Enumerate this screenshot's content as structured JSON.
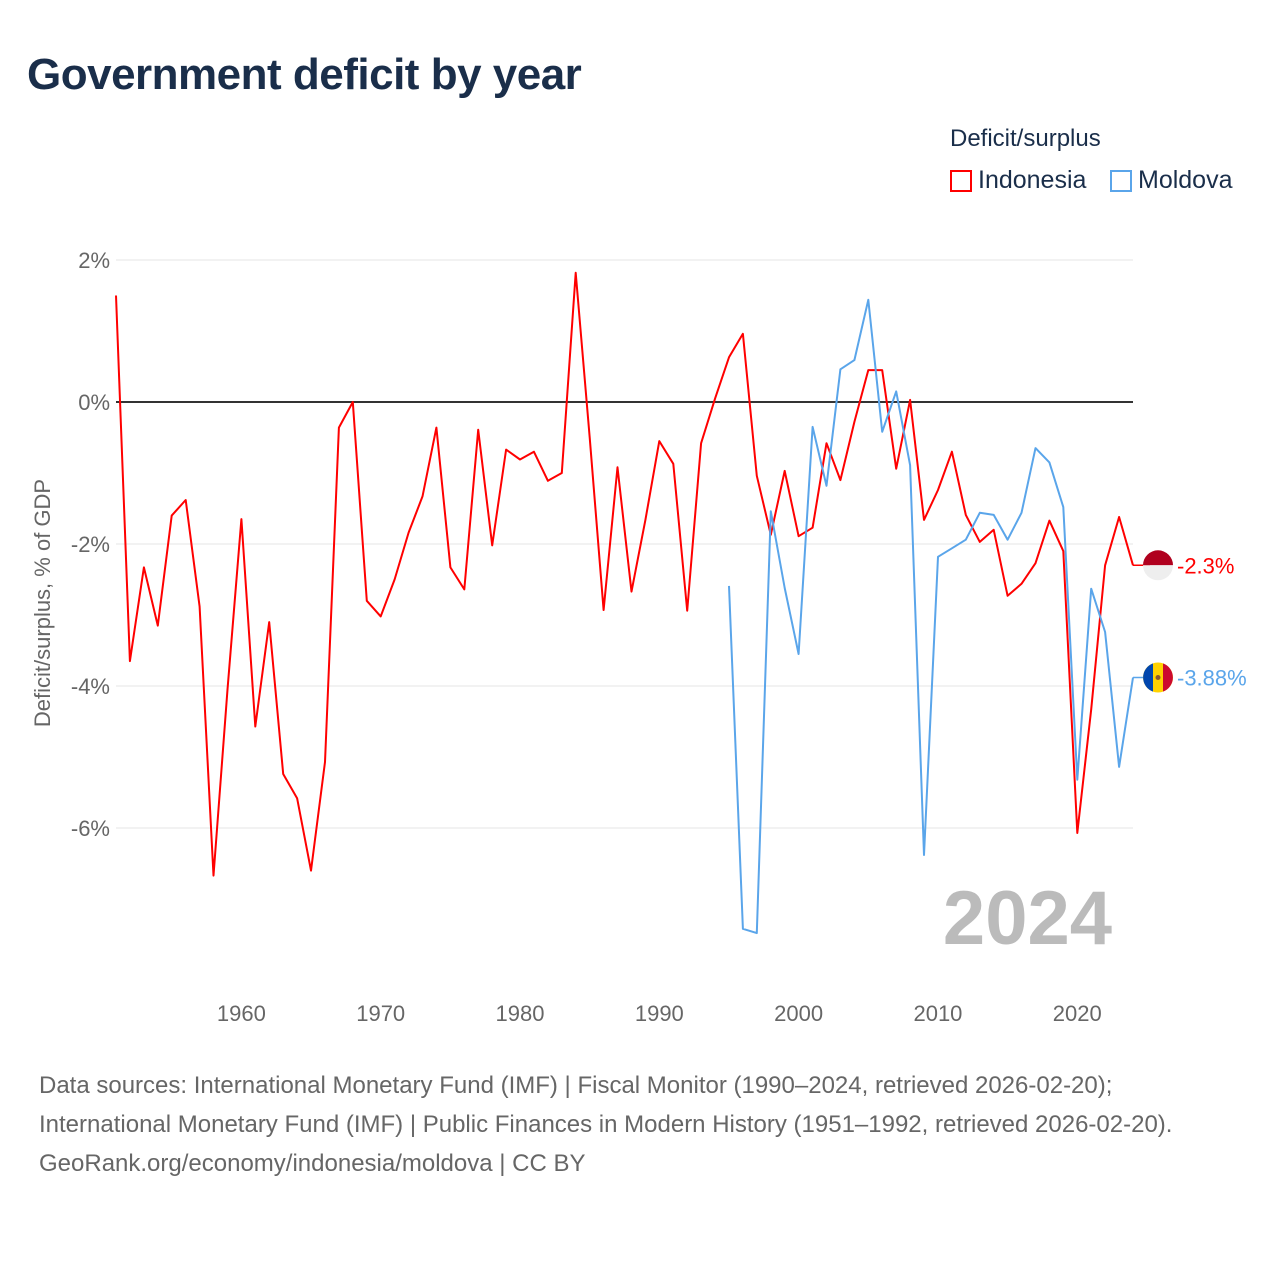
{
  "title": "Government deficit by year",
  "legend": {
    "title": "Deficit/surplus",
    "items": [
      {
        "label": "Indonesia",
        "color": "#ff0000"
      },
      {
        "label": "Moldova",
        "color": "#5aa5ea"
      }
    ]
  },
  "chart_data": {
    "type": "line",
    "title": "Government deficit by year",
    "xlabel": "",
    "ylabel": "Deficit/surplus, % of GDP",
    "xlim": [
      1951,
      2024
    ],
    "ylim": [
      -8,
      2.2
    ],
    "x_ticks": [
      "1960",
      "1970",
      "1980",
      "1990",
      "2000",
      "2010",
      "2020"
    ],
    "y_ticks": [
      {
        "v": 2,
        "label": "2%"
      },
      {
        "v": 0,
        "label": "0%"
      },
      {
        "v": -2,
        "label": "-2%"
      },
      {
        "v": -4,
        "label": "-4%"
      },
      {
        "v": -6,
        "label": "-6%"
      }
    ],
    "year_label": "2024",
    "series": [
      {
        "name": "Indonesia",
        "color": "#ff0000",
        "start_year": 1951,
        "end_label": "-2.3%",
        "values": [
          1.5,
          -3.65,
          -2.33,
          -3.15,
          -1.6,
          -1.38,
          -2.88,
          -6.67,
          -4.05,
          -1.65,
          -4.57,
          -3.1,
          -5.24,
          -5.58,
          -6.6,
          -5.07,
          -0.36,
          0,
          -2.8,
          -3.02,
          -2.5,
          -1.84,
          -1.33,
          -0.36,
          -2.33,
          -2.64,
          -0.39,
          -2.02,
          -0.67,
          -0.81,
          -0.7,
          -1.11,
          -1.0,
          1.82,
          -0.5,
          -2.93,
          -0.92,
          -2.67,
          -1.66,
          -0.55,
          -0.87,
          -2.94,
          -0.58,
          0.05,
          0.63,
          0.96,
          -1.04,
          -1.87,
          -0.97,
          -1.89,
          -1.77,
          -0.58,
          -1.1,
          -0.28,
          0.45,
          0.45,
          -0.94,
          0.03,
          -1.66,
          -1.24,
          -0.7,
          -1.59,
          -1.97,
          -1.8,
          -2.73,
          -2.56,
          -2.27,
          -1.67,
          -2.1,
          -6.07,
          -4.33,
          -2.3,
          -1.62,
          -2.3
        ]
      },
      {
        "name": "Moldova",
        "color": "#5aa5ea",
        "start_year": 1995,
        "end_label": "-3.88%",
        "values": [
          -2.59,
          -7.42,
          -7.48,
          -1.54,
          -2.62,
          -3.55,
          -0.35,
          -1.18,
          0.46,
          0.59,
          1.44,
          -0.42,
          0.15,
          -0.89,
          -6.38,
          -2.18,
          -2.06,
          -1.94,
          -1.56,
          -1.59,
          -1.94,
          -1.56,
          -0.65,
          -0.85,
          -1.48,
          -5.32,
          -2.63,
          -3.24,
          -5.14,
          -3.88
        ]
      }
    ]
  },
  "footer": {
    "sources": "Data sources: International Monetary Fund (IMF) | Fiscal Monitor (1990–2024, retrieved 2026-02-20); International Monetary Fund (IMF) | Public Finances in Modern History (1951–1992, retrieved 2026-02-20).",
    "credit": "GeoRank.org/economy/indonesia/moldova | CC BY"
  }
}
